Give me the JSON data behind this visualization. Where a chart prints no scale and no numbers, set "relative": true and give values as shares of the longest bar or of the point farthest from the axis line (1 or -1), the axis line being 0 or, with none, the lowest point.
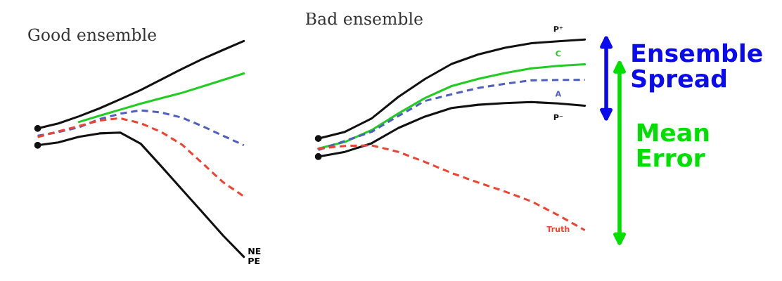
{
  "chart_data": [
    {
      "type": "line",
      "title": "Good ensemble",
      "relative": true,
      "tick_labels": false,
      "categories": [
        null,
        null,
        null,
        null,
        null,
        null,
        null,
        null,
        null,
        null,
        null
      ],
      "series": [
        {
          "color": "#111111",
          "line_style": "solid",
          "values": [
            0.595,
            0.618,
            0.651,
            0.688,
            0.73,
            0.773,
            0.822,
            0.871,
            0.917,
            0.959,
            1.0
          ]
        },
        {
          "color": "#22cc22",
          "line_style": "solid",
          "values": [
            null,
            null,
            0.625,
            0.654,
            0.682,
            0.71,
            0.735,
            0.76,
            0.79,
            0.82,
            0.85
          ]
        },
        {
          "color": "#5060c0",
          "line_style": "dashed",
          "values": [
            0.561,
            0.578,
            0.6,
            0.638,
            0.663,
            0.679,
            0.669,
            0.645,
            0.605,
            0.561,
            0.517
          ]
        },
        {
          "color": "#ee4433",
          "line_style": "dashed",
          "values": [
            0.555,
            0.581,
            0.606,
            0.632,
            0.642,
            0.619,
            0.578,
            0.52,
            0.433,
            0.345,
            0.28
          ]
        },
        {
          "color": "#111111",
          "line_style": "solid",
          "values": [
            0.517,
            0.53,
            0.556,
            0.572,
            0.576,
            0.524,
            0.419,
            0.312,
            0.205,
            0.098,
            0
          ]
        }
      ],
      "annotations": [
        "NE\nPE"
      ]
    },
    {
      "type": "line",
      "title": "Bad ensemble",
      "relative": true,
      "tick_labels": false,
      "categories": [
        null,
        null,
        null,
        null,
        null,
        null,
        null,
        null,
        null,
        null,
        null
      ],
      "series": [
        {
          "name": "P⁺",
          "color": "#111111",
          "line_style": "solid",
          "values": [
            0.481,
            0.516,
            0.586,
            0.699,
            0.793,
            0.872,
            0.922,
            0.957,
            0.981,
            0.991,
            1.0
          ]
        },
        {
          "name": "C",
          "color": "#22cc22",
          "line_style": "solid",
          "values": [
            0.428,
            0.463,
            0.525,
            0.612,
            0.693,
            0.756,
            0.794,
            0.824,
            0.849,
            0.862,
            0.87
          ]
        },
        {
          "name": "A",
          "color": "#5060c0",
          "line_style": "dashed",
          "values": [
            0.421,
            0.468,
            0.516,
            0.599,
            0.678,
            0.713,
            0.746,
            0.768,
            0.786,
            0.788,
            0.789
          ]
        },
        {
          "name": "P⁻",
          "color": "#111111",
          "line_style": "solid",
          "values": [
            0.386,
            0.411,
            0.456,
            0.536,
            0.596,
            0.641,
            0.658,
            0.667,
            0.672,
            0.665,
            0.653
          ]
        },
        {
          "name": "Truth",
          "color": "#ee4433",
          "line_style": "dashed",
          "values": [
            0.428,
            0.442,
            0.445,
            0.411,
            0.358,
            0.3,
            0.25,
            0.203,
            0.151,
            0.079,
            0
          ]
        }
      ],
      "annotations": [
        "Ensemble Spread",
        "Mean Error"
      ]
    }
  ]
}
